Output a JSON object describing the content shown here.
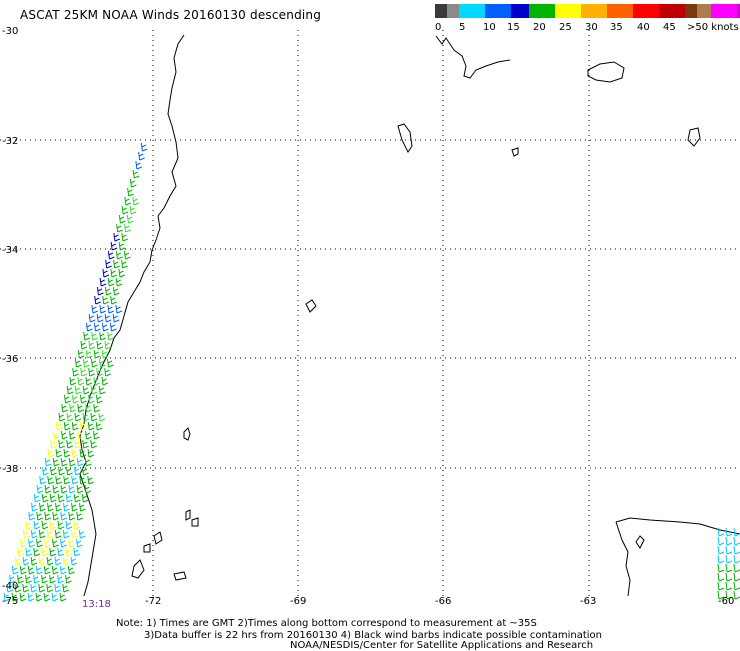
{
  "title": "ASCAT 25KM NOAA Winds 20160130 descending",
  "legend": {
    "segments": [
      {
        "color": "#3a3a3a"
      },
      {
        "color": "#8a8a8a"
      },
      {
        "color": "#00d8ff"
      },
      {
        "color": "#0060ff"
      },
      {
        "color": "#0000cc"
      },
      {
        "color": "#00b400"
      },
      {
        "color": "#ffff00"
      },
      {
        "color": "#ffb000"
      },
      {
        "color": "#ff6000"
      },
      {
        "color": "#ff0000"
      },
      {
        "color": "#c00000"
      },
      {
        "color": "#7a3a10"
      },
      {
        "color": "#b07a50"
      },
      {
        "color": "#ff00ff"
      },
      {
        "color": "#cc00cc"
      },
      {
        "color": "#6a00aa"
      }
    ],
    "labels": [
      "0",
      "5",
      "10",
      "15",
      "20",
      "25",
      "30",
      "35",
      "40",
      "45",
      ">50 knots"
    ]
  },
  "lat_labels": [
    "-30",
    "-32",
    "-34",
    "-36",
    "-38",
    "-40"
  ],
  "lon_labels": [
    "-75",
    "-72",
    "-69",
    "-66",
    "-63",
    "-60"
  ],
  "time_label": "13:18",
  "notes": [
    "Note: 1) Times are GMT 2)Times along bottom correspond to measurement at ~35S",
    "3)Data buffer is 22 hrs from 20160130 4) Black wind barbs indicate possible contamination",
    "NOAA/NESDIS/Center for Satellite Applications and Research"
  ],
  "wind_color_key": {
    "dark_blue": "#0000cc",
    "blue": "#0060ff",
    "cyan": "#00c8ff",
    "green": "#00b400",
    "light_green": "#33dd33",
    "yellow": "#ffff00"
  }
}
